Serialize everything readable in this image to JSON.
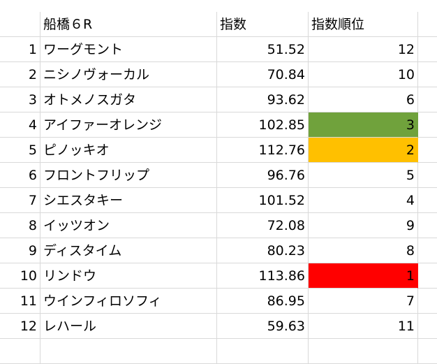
{
  "header": {
    "race": "船橋６R",
    "index_label": "指数",
    "rank_label": "指数順位"
  },
  "rows": [
    {
      "num": "1",
      "name": "ワーグモント",
      "index": "51.52",
      "rank": "12",
      "fill": ""
    },
    {
      "num": "2",
      "name": "ニシノヴォーカル",
      "index": "70.84",
      "rank": "10",
      "fill": ""
    },
    {
      "num": "3",
      "name": "オトメノスガタ",
      "index": "93.62",
      "rank": "6",
      "fill": ""
    },
    {
      "num": "4",
      "name": "アイファーオレンジ",
      "index": "102.85",
      "rank": "3",
      "fill": "#70a23c"
    },
    {
      "num": "5",
      "name": "ピノッキオ",
      "index": "112.76",
      "rank": "2",
      "fill": "#ffc000"
    },
    {
      "num": "6",
      "name": "フロントフリップ",
      "index": "96.76",
      "rank": "5",
      "fill": ""
    },
    {
      "num": "7",
      "name": "シエスタキー",
      "index": "101.52",
      "rank": "4",
      "fill": ""
    },
    {
      "num": "8",
      "name": "イッツオン",
      "index": "72.08",
      "rank": "9",
      "fill": ""
    },
    {
      "num": "9",
      "name": "ディスタイム",
      "index": "80.23",
      "rank": "8",
      "fill": ""
    },
    {
      "num": "10",
      "name": "リンドウ",
      "index": "113.86",
      "rank": "1",
      "fill": "#ff0000"
    },
    {
      "num": "11",
      "name": "ウインフィロソフィ",
      "index": "86.95",
      "rank": "7",
      "fill": ""
    },
    {
      "num": "12",
      "name": "レハール",
      "index": "59.63",
      "rank": "11",
      "fill": ""
    }
  ]
}
